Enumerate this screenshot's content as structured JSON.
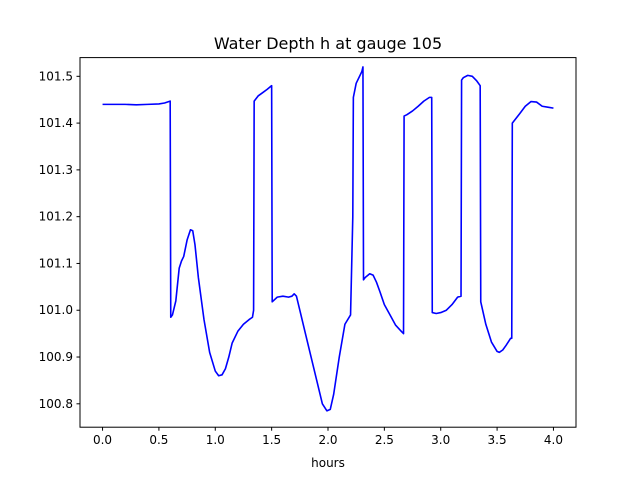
{
  "chart_data": {
    "type": "line",
    "title": "Water Depth h at gauge 105",
    "xlabel": "hours",
    "ylabel": "",
    "xlim": [
      -0.2,
      4.2
    ],
    "ylim": [
      100.75,
      101.54
    ],
    "xticks": [
      0.0,
      0.5,
      1.0,
      1.5,
      2.0,
      2.5,
      3.0,
      3.5,
      4.0
    ],
    "xtick_labels": [
      "0.0",
      "0.5",
      "1.0",
      "1.5",
      "2.0",
      "2.5",
      "3.0",
      "3.5",
      "4.0"
    ],
    "yticks": [
      100.8,
      100.9,
      101.0,
      101.1,
      101.2,
      101.3,
      101.4,
      101.5
    ],
    "ytick_labels": [
      "100.8",
      "100.9",
      "101.0",
      "101.1",
      "101.2",
      "101.3",
      "101.4",
      "101.5"
    ],
    "grid": false,
    "colors": {
      "line": "#0000ff",
      "axes": "#000000",
      "background": "#ffffff"
    },
    "series": [
      {
        "x": [
          0.0,
          0.1,
          0.2,
          0.3,
          0.4,
          0.5,
          0.55,
          0.6,
          0.605,
          0.62,
          0.65,
          0.68,
          0.7,
          0.72,
          0.75,
          0.78,
          0.8,
          0.82,
          0.85,
          0.9,
          0.95,
          1.0,
          1.03,
          1.06,
          1.09,
          1.12,
          1.15,
          1.2,
          1.25,
          1.3,
          1.33,
          1.34,
          1.345,
          1.38,
          1.42,
          1.46,
          1.5,
          1.505,
          1.55,
          1.6,
          1.65,
          1.68,
          1.7,
          1.72,
          1.75,
          1.8,
          1.85,
          1.9,
          1.95,
          1.99,
          2.02,
          2.05,
          2.1,
          2.15,
          2.2,
          2.22,
          2.225,
          2.25,
          2.3,
          2.31,
          2.315,
          2.33,
          2.37,
          2.4,
          2.43,
          2.46,
          2.5,
          2.55,
          2.6,
          2.65,
          2.67,
          2.675,
          2.7,
          2.75,
          2.8,
          2.85,
          2.9,
          2.92,
          2.925,
          2.96,
          3.0,
          3.05,
          3.1,
          3.15,
          3.18,
          3.185,
          3.2,
          3.24,
          3.28,
          3.32,
          3.35,
          3.355,
          3.4,
          3.45,
          3.5,
          3.52,
          3.55,
          3.58,
          3.62,
          3.63,
          3.635,
          3.7,
          3.75,
          3.8,
          3.85,
          3.9,
          3.95,
          4.0
        ],
        "y": [
          101.44,
          101.44,
          101.44,
          101.439,
          101.44,
          101.441,
          101.443,
          101.447,
          100.985,
          100.99,
          101.02,
          101.09,
          101.105,
          101.115,
          101.15,
          101.172,
          101.17,
          101.14,
          101.07,
          100.98,
          100.91,
          100.87,
          100.86,
          100.862,
          100.875,
          100.9,
          100.93,
          100.955,
          100.97,
          100.98,
          100.985,
          101.0,
          101.447,
          101.458,
          101.465,
          101.472,
          101.48,
          101.018,
          101.028,
          101.03,
          101.028,
          101.03,
          101.035,
          101.03,
          101.0,
          100.95,
          100.9,
          100.85,
          100.8,
          100.785,
          100.788,
          100.82,
          100.9,
          100.97,
          100.99,
          101.2,
          101.455,
          101.485,
          101.51,
          101.52,
          101.065,
          101.07,
          101.078,
          101.075,
          101.06,
          101.04,
          101.012,
          100.99,
          100.968,
          100.955,
          100.95,
          101.415,
          101.418,
          101.426,
          101.436,
          101.447,
          101.455,
          101.455,
          100.995,
          100.993,
          100.995,
          101.0,
          101.012,
          101.028,
          101.03,
          101.492,
          101.497,
          101.502,
          101.5,
          101.49,
          101.48,
          101.018,
          100.97,
          100.932,
          100.912,
          100.91,
          100.915,
          100.925,
          100.94,
          100.94,
          101.4,
          101.42,
          101.436,
          101.446,
          101.445,
          101.436,
          101.434,
          101.432
        ]
      }
    ]
  }
}
